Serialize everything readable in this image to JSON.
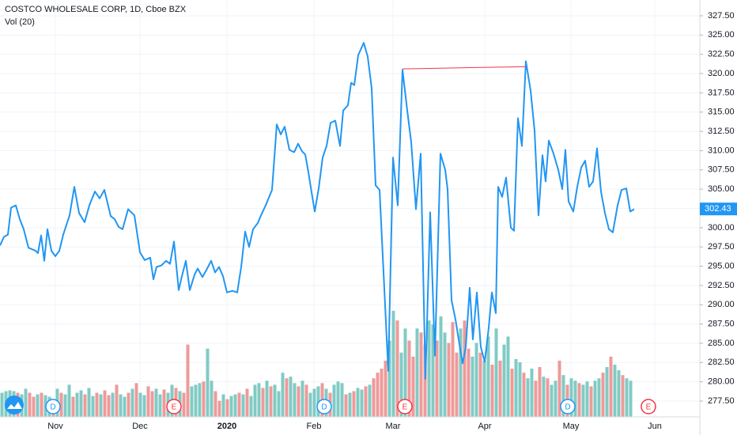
{
  "chart_data": {
    "type": "line",
    "title": "COSTCO WHOLESALE CORP, 1D, Cboe BZX",
    "subtitle": "Vol (20)",
    "color": "#2196f3",
    "x": [
      0,
      1,
      2,
      2.8,
      4,
      5,
      6,
      7.2,
      9,
      9.6,
      10.4,
      11.2,
      12,
      13,
      14,
      15,
      16,
      17.6,
      18.8,
      20,
      21.4,
      22.6,
      24,
      25.2,
      26.4,
      28,
      29,
      30,
      31,
      32.4,
      34,
      35.4,
      36.6,
      38,
      38.8,
      39.6,
      40.8,
      42,
      43,
      44,
      45.2,
      46,
      47,
      48,
      49.2,
      50,
      51.2,
      52.4,
      53.4,
      54.4,
      55.4,
      56.4,
      57.4,
      58.8,
      60,
      61,
      62,
      63,
      64,
      65.2,
      66,
      67.2,
      68.8,
      70,
      71,
      72,
      73.2,
      74.4,
      75.4,
      76.4,
      77.2,
      78,
      78.8,
      79.6,
      80.6,
      81.6,
      82.6,
      83.6,
      84.8,
      86,
      86.8,
      88,
      88.8,
      89.6,
      90.6,
      92,
      93,
      94,
      95,
      96,
      98.2,
      99.4,
      100.6,
      101.8,
      103,
      104,
      105.2,
      106.4,
      107.6,
      108.8,
      110,
      111.4,
      112.6,
      113.2,
      114.2,
      115.2,
      116,
      117,
      117.8,
      118.8,
      119.6,
      120.6,
      121.6,
      122.6,
      123.6,
      124.4,
      125.4,
      126,
      127,
      128,
      129.2,
      130,
      131,
      132,
      133,
      134.2,
      135.2,
      136.2,
      137.2,
      138,
      138.8,
      140,
      141.2,
      142.2,
      143,
      143.8,
      145,
      146,
      147,
      148,
      149,
      150,
      151,
      152,
      153,
      154,
      155,
      156.2,
      157.2,
      158.4,
      159.4,
      160.4
    ],
    "values": [
      297.7,
      298.8,
      299.1,
      302.6,
      302.9,
      301.1,
      299.8,
      297.4,
      297.0,
      296.7,
      299.0,
      295.7,
      299.8,
      297.0,
      296.3,
      297.0,
      299.1,
      301.6,
      305.3,
      301.9,
      300.7,
      302.9,
      304.7,
      303.8,
      304.9,
      301.5,
      301.1,
      300.1,
      299.8,
      302.4,
      301.6,
      296.8,
      295.8,
      296.1,
      293.3,
      294.9,
      295.1,
      295.7,
      295.3,
      298.2,
      291.9,
      293.7,
      295.7,
      291.9,
      293.9,
      294.7,
      293.6,
      294.7,
      295.7,
      294.2,
      294.9,
      293.7,
      291.6,
      291.8,
      291.6,
      294.9,
      299.5,
      297.5,
      299.8,
      300.6,
      301.6,
      302.9,
      304.9,
      313.4,
      312.1,
      313.1,
      310.1,
      309.8,
      310.9,
      309.9,
      309.5,
      307.2,
      304.6,
      302.1,
      305.1,
      309.1,
      310.6,
      313.6,
      313.9,
      310.6,
      315.2,
      315.9,
      318.8,
      318.5,
      322.4,
      324.0,
      322.2,
      318.1,
      305.5,
      304.9,
      281.4,
      309.1,
      302.9,
      320.5,
      315.2,
      311.1,
      302.4,
      309.6,
      280.4,
      302.0,
      283.4,
      309.6,
      307.5,
      305.0,
      290.6,
      288.1,
      285.5,
      282.4,
      284.5,
      292.2,
      285.5,
      291.6,
      284.5,
      282.6,
      287.0,
      291.6,
      288.9,
      305.3,
      304.0,
      306.5,
      300.0,
      299.6,
      314.2,
      310.6,
      321.6,
      317.8,
      312.6,
      301.6,
      309.4,
      306.0,
      311.3,
      309.6,
      307.5,
      305.0,
      310.1,
      303.4,
      302.1,
      305.3,
      307.8,
      308.7,
      305.3,
      306.0,
      310.3,
      304.7,
      301.9,
      299.8,
      299.4,
      302.9,
      304.9,
      305.1,
      302.1,
      302.4
    ],
    "last_price": {
      "value": 302.43,
      "label": "302.43",
      "color": "#2196f3"
    },
    "trend_line": {
      "x": [
        101.8,
        133
      ],
      "values": [
        320.6,
        320.9
      ],
      "color": "#f23645"
    },
    "volume": {
      "vlim": [
        0,
        130
      ],
      "up_color": "#80cbc4",
      "down_color": "#ef9a9a",
      "values": [
        30,
        32,
        33,
        32,
        30,
        28,
        35,
        30,
        25,
        28,
        30,
        27,
        25,
        22,
        35,
        30,
        28,
        40,
        25,
        30,
        33,
        28,
        36,
        26,
        30,
        28,
        33,
        27,
        30,
        40,
        28,
        25,
        30,
        35,
        42,
        30,
        27,
        38,
        32,
        35,
        28,
        34,
        30,
        40,
        36,
        32,
        30,
        90,
        38,
        40,
        42,
        44,
        85,
        45,
        32,
        20,
        28,
        22,
        26,
        28,
        30,
        28,
        35,
        26,
        40,
        42,
        36,
        45,
        38,
        40,
        32,
        55,
        48,
        50,
        42,
        38,
        45,
        40,
        30,
        35,
        38,
        42,
        35,
        30,
        40,
        44,
        42,
        28,
        30,
        32,
        36,
        34,
        38,
        40,
        48,
        55,
        60,
        70,
        95,
        132,
        120,
        80,
        110,
        95,
        75,
        110,
        105,
        90,
        120,
        115,
        95,
        125,
        105,
        92,
        118,
        80,
        110,
        120,
        85,
        75,
        92,
        80,
        70,
        100,
        65,
        110,
        70,
        90,
        100,
        60,
        72,
        68,
        55,
        48,
        60,
        45,
        62,
        50,
        48,
        40,
        45,
        70,
        52,
        40,
        48,
        45,
        42,
        40,
        44,
        38,
        45,
        48,
        55,
        62,
        75,
        65,
        58,
        52,
        48,
        45
      ],
      "up": [
        1,
        1,
        1,
        1,
        0,
        1,
        1,
        0,
        0,
        1,
        0,
        1,
        1,
        0,
        1,
        0,
        1,
        1,
        0,
        1,
        1,
        0,
        1,
        1,
        0,
        1,
        0,
        0,
        1,
        0,
        1,
        1,
        0,
        1,
        0,
        1,
        1,
        0,
        0,
        1,
        1,
        0,
        1,
        1,
        0,
        1,
        0,
        0,
        1,
        1,
        1,
        0,
        1,
        1,
        0,
        0,
        1,
        0,
        1,
        1,
        0,
        1,
        0,
        1,
        1,
        1,
        0,
        1,
        0,
        1,
        1,
        1,
        0,
        1,
        1,
        0,
        1,
        0,
        1,
        1,
        1,
        0,
        1,
        0,
        1,
        1,
        1,
        0,
        1,
        0,
        1,
        1,
        0,
        1,
        0,
        0,
        0,
        0,
        1,
        1,
        0,
        1,
        1,
        0,
        0,
        1,
        0,
        0,
        1,
        1,
        0,
        1,
        1,
        0,
        0,
        0,
        1,
        0,
        0,
        1,
        1,
        0,
        1,
        1,
        0,
        1,
        0,
        1,
        1,
        0,
        1,
        1,
        0,
        1,
        1,
        0,
        0,
        1,
        0,
        1,
        1,
        0,
        1,
        0,
        1,
        1,
        0,
        1,
        1,
        0,
        1,
        1,
        0,
        1,
        0,
        1,
        1,
        0,
        1,
        1
      ]
    },
    "events": [
      {
        "label": "D",
        "x": 13.4,
        "color": "#2196f3"
      },
      {
        "label": "E",
        "x": 44,
        "color": "#f23645"
      },
      {
        "label": "D",
        "x": 82,
        "color": "#2196f3"
      },
      {
        "label": "E",
        "x": 102.4,
        "color": "#f23645"
      },
      {
        "label": "D",
        "x": 143.6,
        "color": "#2196f3"
      },
      {
        "label": "E",
        "x": 164,
        "color": "#f23645"
      }
    ],
    "xlim": [
      0,
      177
    ],
    "xticks": [
      {
        "value": 14,
        "label": "Nov"
      },
      {
        "value": 35.4,
        "label": "Dec"
      },
      {
        "value": 57.4,
        "label": "2020"
      },
      {
        "value": 79.4,
        "label": "Feb"
      },
      {
        "value": 99.4,
        "label": "Mar"
      },
      {
        "value": 122.6,
        "label": "Apr"
      },
      {
        "value": 144.4,
        "label": "May"
      },
      {
        "value": 165.6,
        "label": "Jun"
      }
    ],
    "ylim": [
      275.45,
      329.55
    ],
    "yticks": [
      {
        "value": 277.5,
        "label": "277.50"
      },
      {
        "value": 280,
        "label": "280.00"
      },
      {
        "value": 282.5,
        "label": "282.50"
      },
      {
        "value": 285,
        "label": "285.00"
      },
      {
        "value": 287.5,
        "label": "287.50"
      },
      {
        "value": 290,
        "label": "290.00"
      },
      {
        "value": 292.5,
        "label": "292.50"
      },
      {
        "value": 295,
        "label": "295.00"
      },
      {
        "value": 297.5,
        "label": "297.50"
      },
      {
        "value": 300,
        "label": "300.00"
      },
      {
        "value": 302.5,
        "label": "302.50"
      },
      {
        "value": 305,
        "label": "305.00"
      },
      {
        "value": 307.5,
        "label": "307.50"
      },
      {
        "value": 310,
        "label": "310.00"
      },
      {
        "value": 312.5,
        "label": "312.50"
      },
      {
        "value": 315,
        "label": "315.00"
      },
      {
        "value": 317.5,
        "label": "317.50"
      },
      {
        "value": 320,
        "label": "320.00"
      },
      {
        "value": 322.5,
        "label": "322.50"
      },
      {
        "value": 325,
        "label": "325.00"
      },
      {
        "value": 327.5,
        "label": "327.50"
      }
    ],
    "grid": true
  }
}
